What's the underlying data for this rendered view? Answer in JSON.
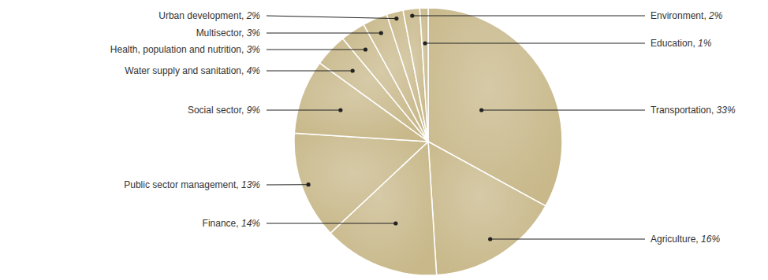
{
  "chart_data": {
    "type": "pie",
    "categories": [
      "Transportation",
      "Agriculture",
      "Finance",
      "Public sector management",
      "Social sector",
      "Water supply and sanitation",
      "Health, population and nutrition",
      "Multisector",
      "Urban development",
      "Environment",
      "Education"
    ],
    "values": [
      33,
      16,
      14,
      13,
      9,
      4,
      3,
      3,
      2,
      2,
      1
    ],
    "value_labels": [
      "33%",
      "16%",
      "14%",
      "13%",
      "9%",
      "4%",
      "3%",
      "3%",
      "2%",
      "2%",
      "1%"
    ],
    "color": "#c8b88a"
  }
}
